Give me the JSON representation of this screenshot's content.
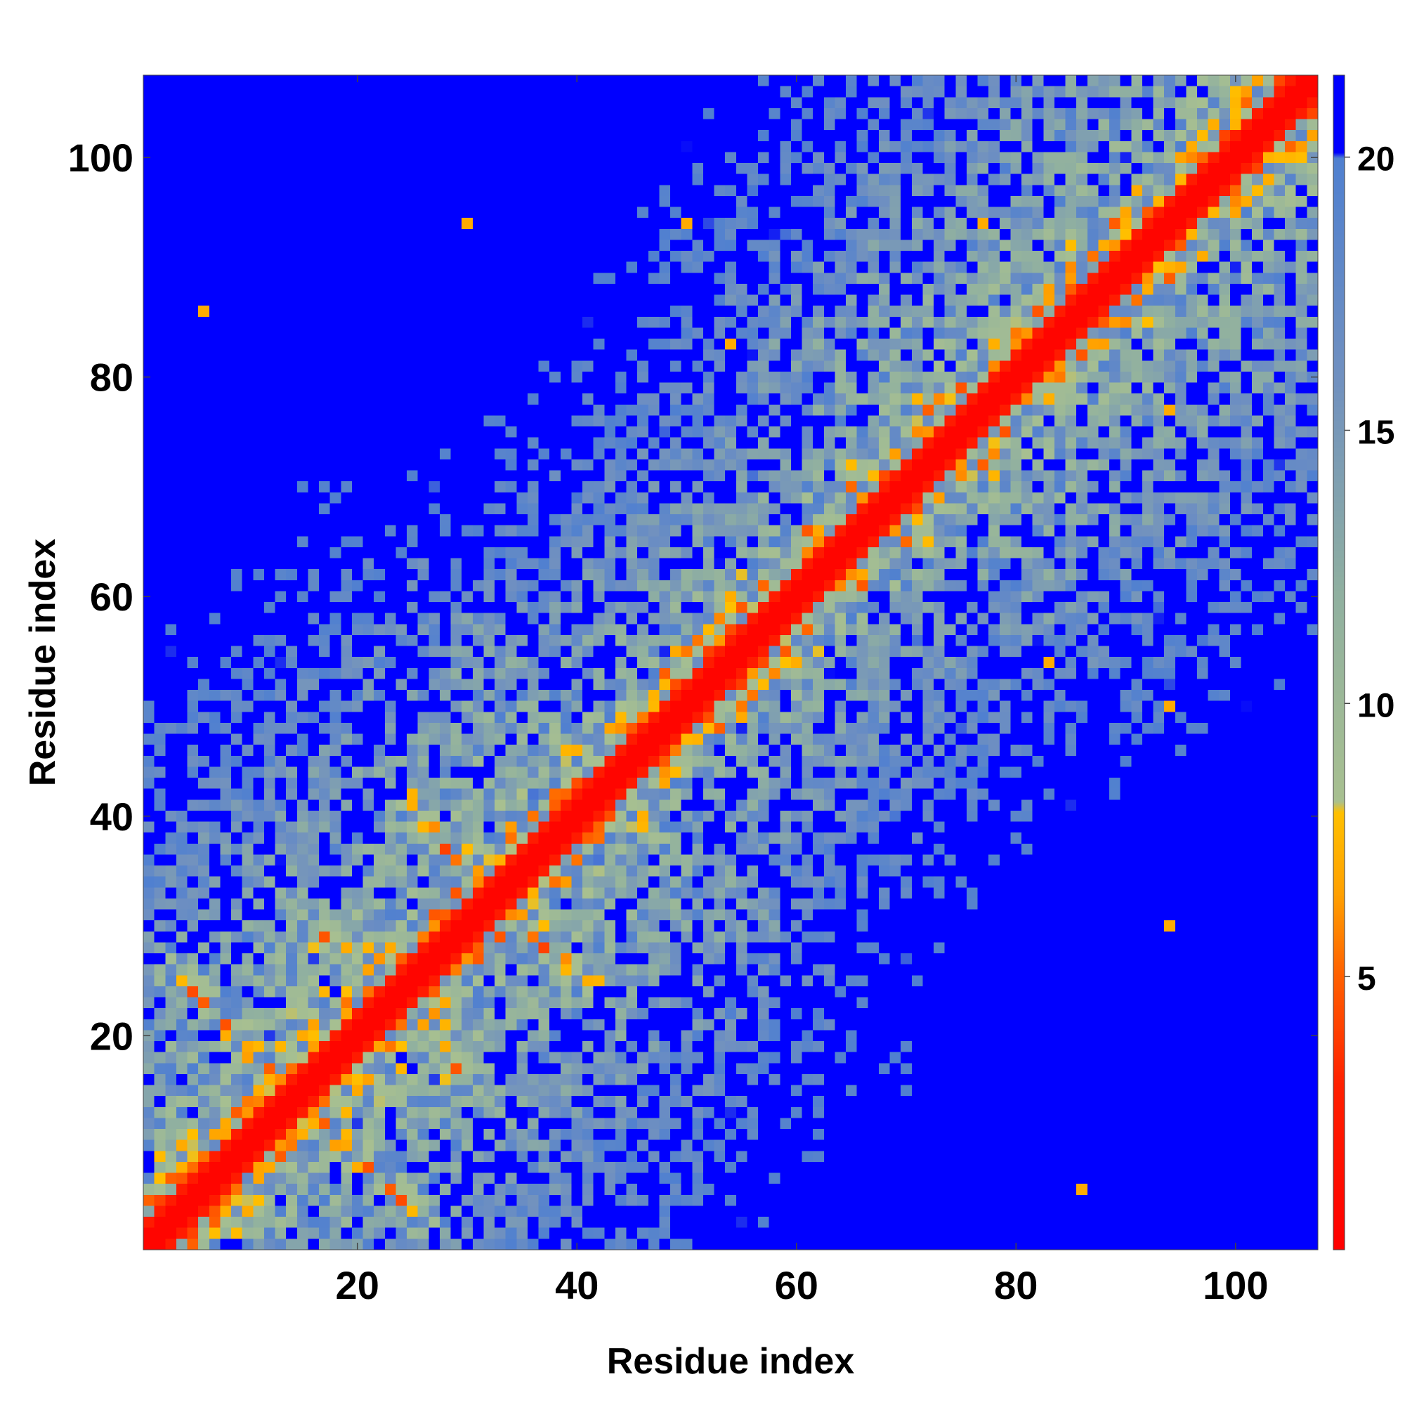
{
  "chart_data": {
    "type": "heatmap",
    "title": "",
    "xlabel": "Residue index",
    "ylabel": "Residue index",
    "n_residues": 107,
    "xlim": [
      1,
      107
    ],
    "ylim": [
      1,
      107
    ],
    "x_ticks": [
      20,
      40,
      60,
      80,
      100
    ],
    "y_ticks": [
      20,
      40,
      60,
      80,
      100
    ],
    "colorbar": {
      "min": 0,
      "max": 21.5,
      "ticks": [
        5,
        10,
        15,
        20
      ],
      "stops": [
        {
          "value": 0,
          "color": "#ff0000"
        },
        {
          "value": 3,
          "color": "#ff2000"
        },
        {
          "value": 5,
          "color": "#ff6000"
        },
        {
          "value": 6.5,
          "color": "#ffa000"
        },
        {
          "value": 8,
          "color": "#ffc000"
        },
        {
          "value": 8.2,
          "color": "#a8c090"
        },
        {
          "value": 12,
          "color": "#90b0a0"
        },
        {
          "value": 16,
          "color": "#7090c0"
        },
        {
          "value": 20,
          "color": "#5080d0"
        },
        {
          "value": 20.1,
          "color": "#0000ff"
        },
        {
          "value": 21.5,
          "color": "#0000ff"
        }
      ]
    },
    "contact_features": [
      {
        "kind": "diagonal",
        "note": "distance ~0 along i = j"
      },
      {
        "kind": "antiparallel",
        "from": [
          3,
          26
        ],
        "to": [
          12,
          17
        ]
      },
      {
        "kind": "antiparallel",
        "from": [
          16,
          30
        ],
        "to": [
          25,
          21
        ]
      },
      {
        "kind": "antiparallel",
        "from": [
          25,
          41
        ],
        "to": [
          39,
          26
        ]
      },
      {
        "kind": "parallel_band",
        "from": [
          41,
          46
        ],
        "to": [
          98,
          103
        ]
      },
      {
        "kind": "helix_band",
        "from": [
          55,
          58
        ],
        "to": [
          106,
          107
        ]
      }
    ],
    "isolated_contacts": [
      [
        6,
        86
      ],
      [
        30,
        94
      ],
      [
        50,
        94
      ],
      [
        54,
        83
      ],
      [
        83,
        54
      ],
      [
        94,
        50
      ],
      [
        94,
        30
      ],
      [
        86,
        6
      ],
      [
        94,
        77
      ],
      [
        77,
        94
      ]
    ]
  }
}
